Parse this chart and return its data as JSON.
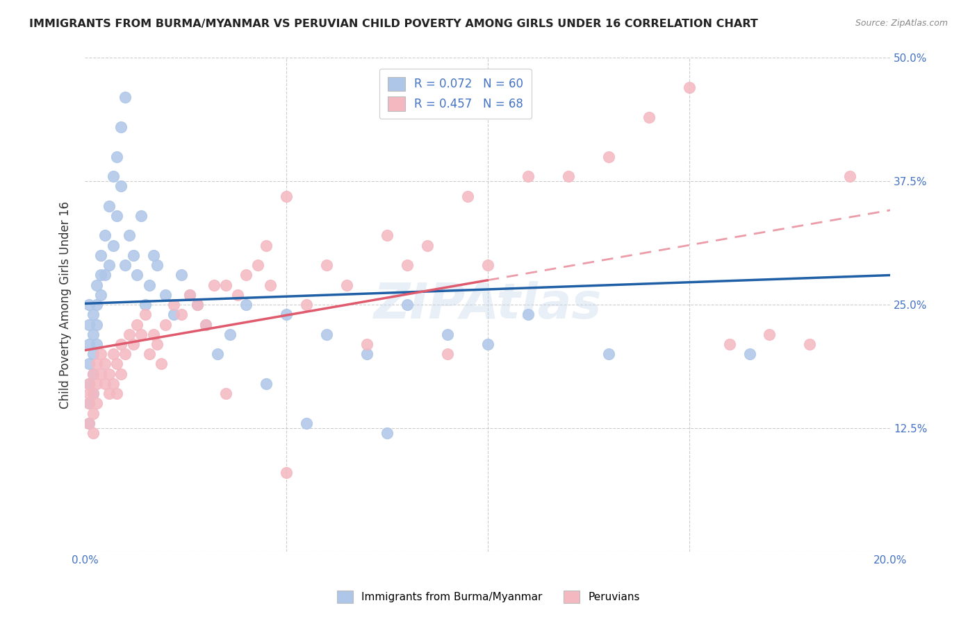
{
  "title": "IMMIGRANTS FROM BURMA/MYANMAR VS PERUVIAN CHILD POVERTY AMONG GIRLS UNDER 16 CORRELATION CHART",
  "source": "Source: ZipAtlas.com",
  "ylabel": "Child Poverty Among Girls Under 16",
  "xlim": [
    0.0,
    0.2
  ],
  "ylim": [
    0.0,
    0.5
  ],
  "xticks": [
    0.0,
    0.05,
    0.1,
    0.15,
    0.2
  ],
  "xticklabels": [
    "0.0%",
    "",
    "",
    "",
    "20.0%"
  ],
  "yticks": [
    0.0,
    0.125,
    0.25,
    0.375,
    0.5
  ],
  "yticklabels": [
    "",
    "12.5%",
    "25.0%",
    "37.5%",
    "50.0%"
  ],
  "R_blue": 0.072,
  "N_blue": 60,
  "R_pink": 0.457,
  "N_pink": 68,
  "blue_color": "#aec6e8",
  "pink_color": "#f4b8c1",
  "blue_line_color": "#1f5fa6",
  "pink_line_color": "#e05a6e",
  "legend_label_blue": "Immigrants from Burma/Myanmar",
  "legend_label_pink": "Peruvians",
  "watermark": "ZIPAtlas",
  "blue_scatter_x": [
    0.001,
    0.001,
    0.001,
    0.001,
    0.001,
    0.001,
    0.001,
    0.002,
    0.002,
    0.002,
    0.002,
    0.002,
    0.003,
    0.003,
    0.003,
    0.003,
    0.004,
    0.004,
    0.004,
    0.005,
    0.005,
    0.006,
    0.006,
    0.007,
    0.007,
    0.008,
    0.008,
    0.009,
    0.009,
    0.01,
    0.01,
    0.011,
    0.012,
    0.013,
    0.014,
    0.015,
    0.016,
    0.017,
    0.018,
    0.02,
    0.022,
    0.024,
    0.026,
    0.028,
    0.03,
    0.033,
    0.036,
    0.04,
    0.045,
    0.05,
    0.055,
    0.06,
    0.07,
    0.075,
    0.08,
    0.09,
    0.1,
    0.11,
    0.13,
    0.165
  ],
  "blue_scatter_y": [
    0.21,
    0.23,
    0.25,
    0.19,
    0.17,
    0.15,
    0.13,
    0.24,
    0.22,
    0.2,
    0.18,
    0.16,
    0.27,
    0.25,
    0.23,
    0.21,
    0.3,
    0.28,
    0.26,
    0.32,
    0.28,
    0.35,
    0.29,
    0.38,
    0.31,
    0.4,
    0.34,
    0.43,
    0.37,
    0.46,
    0.29,
    0.32,
    0.3,
    0.28,
    0.34,
    0.25,
    0.27,
    0.3,
    0.29,
    0.26,
    0.24,
    0.28,
    0.26,
    0.25,
    0.23,
    0.2,
    0.22,
    0.25,
    0.17,
    0.24,
    0.13,
    0.22,
    0.2,
    0.12,
    0.25,
    0.22,
    0.21,
    0.24,
    0.2,
    0.2
  ],
  "pink_scatter_x": [
    0.001,
    0.001,
    0.001,
    0.001,
    0.002,
    0.002,
    0.002,
    0.002,
    0.003,
    0.003,
    0.003,
    0.004,
    0.004,
    0.005,
    0.005,
    0.006,
    0.006,
    0.007,
    0.007,
    0.008,
    0.008,
    0.009,
    0.009,
    0.01,
    0.011,
    0.012,
    0.013,
    0.014,
    0.015,
    0.016,
    0.017,
    0.018,
    0.019,
    0.02,
    0.022,
    0.024,
    0.026,
    0.028,
    0.03,
    0.032,
    0.035,
    0.038,
    0.04,
    0.043,
    0.046,
    0.05,
    0.055,
    0.06,
    0.065,
    0.07,
    0.075,
    0.08,
    0.085,
    0.09,
    0.095,
    0.1,
    0.11,
    0.12,
    0.13,
    0.14,
    0.15,
    0.16,
    0.17,
    0.18,
    0.19,
    0.05,
    0.045,
    0.035
  ],
  "pink_scatter_y": [
    0.17,
    0.16,
    0.15,
    0.13,
    0.18,
    0.16,
    0.14,
    0.12,
    0.19,
    0.17,
    0.15,
    0.2,
    0.18,
    0.19,
    0.17,
    0.18,
    0.16,
    0.2,
    0.17,
    0.19,
    0.16,
    0.21,
    0.18,
    0.2,
    0.22,
    0.21,
    0.23,
    0.22,
    0.24,
    0.2,
    0.22,
    0.21,
    0.19,
    0.23,
    0.25,
    0.24,
    0.26,
    0.25,
    0.23,
    0.27,
    0.27,
    0.26,
    0.28,
    0.29,
    0.27,
    0.08,
    0.25,
    0.29,
    0.27,
    0.21,
    0.32,
    0.29,
    0.31,
    0.2,
    0.36,
    0.29,
    0.38,
    0.38,
    0.4,
    0.44,
    0.47,
    0.21,
    0.22,
    0.21,
    0.38,
    0.36,
    0.31,
    0.16
  ]
}
